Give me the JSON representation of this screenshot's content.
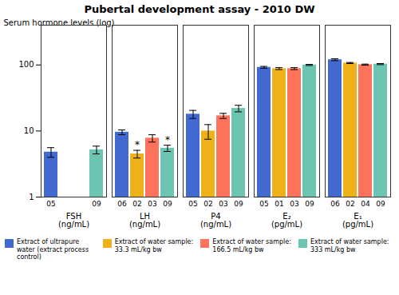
{
  "chart_data": {
    "type": "bar",
    "title": "Pubertal development assay - 2010 DW",
    "ylabel": "Serum hormone levels (log)",
    "categories": [
      "FSH\n(ng/mL)",
      "LH\n(ng/mL)",
      "P4\n(ng/mL)",
      "E₂\n(pg/mL)",
      "E₁\n(pg/mL)"
    ],
    "series": [
      {
        "name": "Extract of ultrapure\nwater (extract process\ncontrol)",
        "values": [
          4.8,
          9.6,
          18.0,
          92.0,
          120.0
        ],
        "errors": [
          0.8,
          0.8,
          2.5,
          3.0,
          4.0
        ],
        "n_labels": [
          "05",
          "06",
          "05",
          "05",
          "06"
        ]
      },
      {
        "name": "Extract of water sample:\n33.3 mL/kg bw",
        "values": [
          null,
          4.5,
          10.0,
          88.0,
          107.0
        ],
        "errors": [
          null,
          0.6,
          2.5,
          3.0,
          2.0
        ],
        "n_labels": [
          null,
          "02",
          "02",
          "01",
          "02"
        ]
      },
      {
        "name": "Extract of water sample:\n166.5 mL/kg bw",
        "values": [
          null,
          7.8,
          17.0,
          88.0,
          101.0
        ],
        "errors": [
          null,
          1.0,
          1.5,
          3.0,
          2.0
        ],
        "n_labels": [
          null,
          "03",
          "03",
          "03",
          "04"
        ]
      },
      {
        "name": "Extract of water sample:\n333 mL/kg bw",
        "values": [
          5.2,
          5.5,
          22.0,
          100.0,
          103.0
        ],
        "errors": [
          0.7,
          0.6,
          2.5,
          2.0,
          2.0
        ],
        "n_labels": [
          "09",
          "09",
          "09",
          "09",
          "09"
        ]
      }
    ],
    "annotations": [
      {
        "category": "LH\n(ng/mL)",
        "series": "Extract of water sample:\n33.3 mL/kg bw",
        "text": "*"
      },
      {
        "category": "LH\n(ng/mL)",
        "series": "Extract of water sample:\n333 mL/kg bw",
        "text": "*"
      }
    ],
    "ylim": [
      1,
      400
    ],
    "yticks": [
      1,
      10,
      100
    ],
    "log": "y",
    "grid": false,
    "legend": "bottom"
  }
}
